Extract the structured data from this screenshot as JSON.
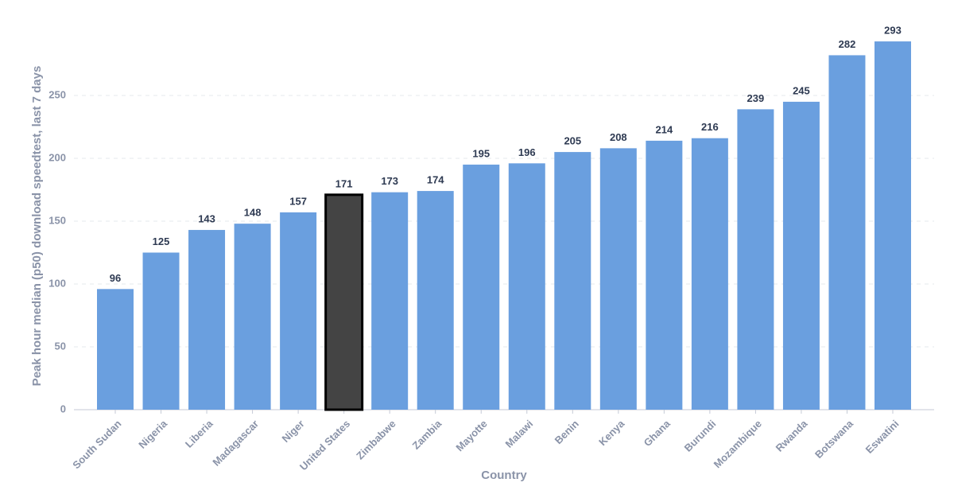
{
  "chart_data": {
    "type": "bar",
    "x_label": "Country",
    "y_label": "Peak hour median (p50) download speedtest, last 7 days",
    "categories": [
      "South Sudan",
      "Nigeria",
      "Liberia",
      "Madagascar",
      "Niger",
      "United States",
      "Zimbabwe",
      "Zambia",
      "Mayotte",
      "Malawi",
      "Benin",
      "Kenya",
      "Ghana",
      "Burundi",
      "Mozambique",
      "Rwanda",
      "Botswana",
      "Eswatini"
    ],
    "values": [
      96,
      125,
      143,
      148,
      157,
      171,
      173,
      174,
      195,
      196,
      205,
      208,
      214,
      216,
      239,
      245,
      282,
      293
    ],
    "colors": [
      "#6a9fdf",
      "#6a9fdf",
      "#6a9fdf",
      "#6a9fdf",
      "#6a9fdf",
      "#444444",
      "#6a9fdf",
      "#6a9fdf",
      "#6a9fdf",
      "#6a9fdf",
      "#6a9fdf",
      "#6a9fdf",
      "#6a9fdf",
      "#6a9fdf",
      "#6a9fdf",
      "#6a9fdf",
      "#6a9fdf",
      "#6a9fdf"
    ],
    "strokes": [
      null,
      null,
      null,
      null,
      null,
      "#000000",
      null,
      null,
      null,
      null,
      null,
      null,
      null,
      null,
      null,
      null,
      null,
      null
    ],
    "ylim": [
      0,
      300
    ],
    "yticks": [
      0,
      50,
      100,
      150,
      200,
      250
    ],
    "grid": true
  }
}
